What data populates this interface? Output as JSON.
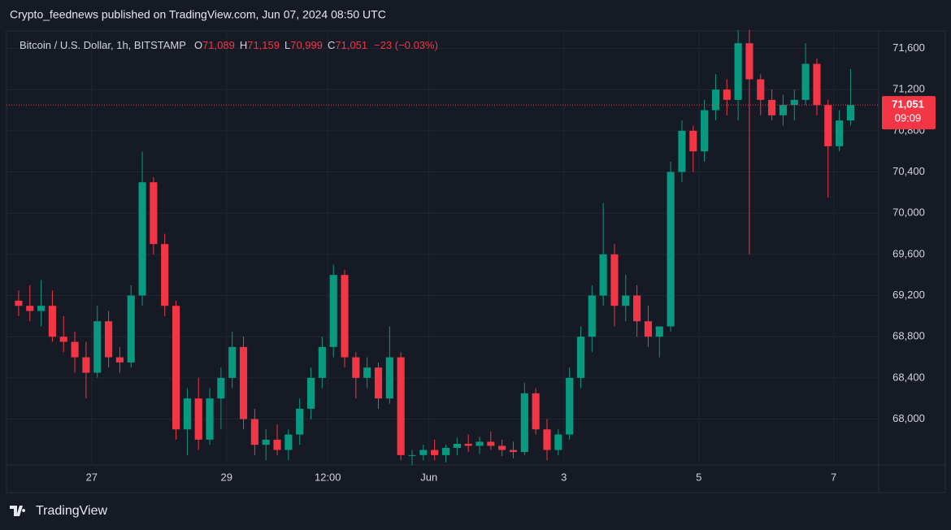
{
  "published": "Crypto_feednews published on TradingView.com, Jun 07, 2024 08:50 UTC",
  "footer": "TradingView",
  "chart_data": {
    "type": "candlestick",
    "symbol": "Bitcoin / U.S. Dollar, 1h, BITSTAMP",
    "legend": [
      {
        "label": "O",
        "value": "71,089"
      },
      {
        "label": "H",
        "value": "71,159"
      },
      {
        "label": "L",
        "value": "70,999"
      },
      {
        "label": "C",
        "value": "71,051"
      }
    ],
    "change": "−23 (−0.03%)",
    "up_color": "#089981",
    "down_color": "#f23645",
    "grid": true,
    "last_price": {
      "value": 71051,
      "label": "71,051"
    },
    "countdown": "09:09",
    "xlim": [
      0,
      77
    ],
    "xticks": [
      {
        "value": 7,
        "label": "27"
      },
      {
        "value": 19,
        "label": "29"
      },
      {
        "value": 28,
        "label": "12:00"
      },
      {
        "value": 37,
        "label": "Jun"
      },
      {
        "value": 49,
        "label": "3"
      },
      {
        "value": 61,
        "label": "5"
      },
      {
        "value": 73,
        "label": "7"
      }
    ],
    "ylim": [
      67570,
      71770
    ],
    "yticks": [
      {
        "value": 68000,
        "label": "68,000"
      },
      {
        "value": 68400,
        "label": "68,400"
      },
      {
        "value": 68800,
        "label": "68,800"
      },
      {
        "value": 69200,
        "label": "69,200"
      },
      {
        "value": 69600,
        "label": "69,600"
      },
      {
        "value": 70000,
        "label": "70,000"
      },
      {
        "value": 70400,
        "label": "70,400"
      },
      {
        "value": 70800,
        "label": "70,800"
      },
      {
        "value": 71200,
        "label": "71,200"
      },
      {
        "value": 71600,
        "label": "71,600"
      }
    ],
    "ohlc": [
      [
        69150,
        69250,
        69000,
        69100
      ],
      [
        69100,
        69300,
        68950,
        69050
      ],
      [
        69050,
        69350,
        68900,
        69100
      ],
      [
        69100,
        69250,
        68750,
        68800
      ],
      [
        68800,
        69000,
        68650,
        68750
      ],
      [
        68750,
        68850,
        68450,
        68600
      ],
      [
        68600,
        68750,
        68200,
        68450
      ],
      [
        68450,
        69100,
        68400,
        68950
      ],
      [
        68950,
        69050,
        68500,
        68600
      ],
      [
        68600,
        68700,
        68450,
        68550
      ],
      [
        68550,
        69300,
        68500,
        69200
      ],
      [
        69200,
        70600,
        69100,
        70300
      ],
      [
        70300,
        70350,
        69600,
        69700
      ],
      [
        69700,
        69800,
        69000,
        69100
      ],
      [
        69100,
        69150,
        67800,
        67900
      ],
      [
        67900,
        68300,
        67650,
        68200
      ],
      [
        68200,
        68400,
        67700,
        67800
      ],
      [
        67800,
        68300,
        67750,
        68200
      ],
      [
        68200,
        68500,
        67900,
        68400
      ],
      [
        68400,
        68850,
        68300,
        68700
      ],
      [
        68700,
        68800,
        67900,
        68000
      ],
      [
        68000,
        68100,
        67650,
        67750
      ],
      [
        67750,
        67900,
        67600,
        67800
      ],
      [
        67800,
        67950,
        67650,
        67700
      ],
      [
        67700,
        67900,
        67600,
        67850
      ],
      [
        67850,
        68200,
        67750,
        68100
      ],
      [
        68100,
        68500,
        68000,
        68400
      ],
      [
        68400,
        68800,
        68300,
        68700
      ],
      [
        68700,
        69500,
        68600,
        69400
      ],
      [
        69400,
        69450,
        68500,
        68600
      ],
      [
        68600,
        68650,
        68200,
        68400
      ],
      [
        68400,
        68600,
        68300,
        68500
      ],
      [
        68500,
        68550,
        68100,
        68200
      ],
      [
        68200,
        68900,
        68150,
        68600
      ],
      [
        68600,
        68650,
        67600,
        67650
      ],
      [
        67650,
        67700,
        67550,
        67650
      ],
      [
        67650,
        67750,
        67600,
        67700
      ],
      [
        67700,
        67800,
        67600,
        67650
      ],
      [
        67650,
        67750,
        67580,
        67720
      ],
      [
        67720,
        67820,
        67650,
        67760
      ],
      [
        67760,
        67850,
        67680,
        67740
      ],
      [
        67740,
        67830,
        67660,
        67780
      ],
      [
        67780,
        67880,
        67700,
        67740
      ],
      [
        67740,
        67800,
        67640,
        67700
      ],
      [
        67700,
        67780,
        67620,
        67680
      ],
      [
        67680,
        68350,
        67650,
        68250
      ],
      [
        68250,
        68300,
        67850,
        67900
      ],
      [
        67900,
        68000,
        67600,
        67700
      ],
      [
        67700,
        67900,
        67650,
        67850
      ],
      [
        67850,
        68500,
        67800,
        68400
      ],
      [
        68400,
        68900,
        68300,
        68800
      ],
      [
        68800,
        69300,
        68650,
        69200
      ],
      [
        69200,
        70100,
        69100,
        69600
      ],
      [
        69600,
        69700,
        68900,
        69100
      ],
      [
        69100,
        69400,
        68950,
        69200
      ],
      [
        69200,
        69300,
        68800,
        68950
      ],
      [
        68950,
        69100,
        68700,
        68800
      ],
      [
        68800,
        68900,
        68600,
        68900
      ],
      [
        68900,
        70500,
        68850,
        70400
      ],
      [
        70400,
        70900,
        70300,
        70800
      ],
      [
        70800,
        70850,
        70400,
        70600
      ],
      [
        70600,
        71100,
        70500,
        71000
      ],
      [
        71000,
        71350,
        70900,
        71200
      ],
      [
        71200,
        71300,
        70950,
        71100
      ],
      [
        71100,
        71780,
        70900,
        71650
      ],
      [
        71650,
        71780,
        69600,
        71300
      ],
      [
        71300,
        71350,
        70950,
        71100
      ],
      [
        71100,
        71200,
        70900,
        70950
      ],
      [
        70950,
        71150,
        70850,
        71050
      ],
      [
        71050,
        71200,
        70900,
        71100
      ],
      [
        71100,
        71650,
        71050,
        71450
      ],
      [
        71450,
        71500,
        70950,
        71050
      ],
      [
        71050,
        71100,
        70150,
        70650
      ],
      [
        70650,
        71000,
        70600,
        70900
      ],
      [
        70900,
        71400,
        70850,
        71051
      ]
    ]
  }
}
